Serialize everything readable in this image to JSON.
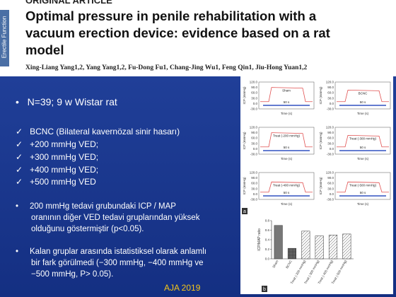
{
  "header": {
    "section": "ORIGINAL ARTICLE",
    "side_label": "Erectile Function",
    "title": "Optimal pressure in penile rehabilitation with a vacuum erection device: evidence based on a rat model",
    "authors": "Xing-Liang Yang1,2, Yang Yang1,2, Fu-Dong Fu1, Chang-Jing Wu1, Feng Qin1, Jiu-Hong Yuan1,2"
  },
  "bullets": [
    "N=39;  9 w Wistar rat"
  ],
  "checks": [
    "BCNC (Bilateral kavernözal sinir hasarı)",
    "+200 mmHg VED;",
    "+300 mmHg VED;",
    "+400 mmHg VED;",
    "+500 mmHg VED"
  ],
  "notes": [
    "200 mmHg tedavi grubundaki ICP / MAP oranının diğer VED tedavi gruplarından yüksek olduğunu göstermiştir (p<0.05).",
    "Kalan gruplar arasında istatistiksel olarak anlamlı bir fark görülmedi (−300 mmHg, −400 mmHg ve −500 mmHg, P> 0.05)."
  ],
  "footer": "AJA 2019",
  "figure": {
    "panel_a": {
      "label": "a",
      "x_label": "Time (s)",
      "y_label": "ICP (mmHg)",
      "scale_bar": "50 s",
      "yticks": [
        "120.0",
        "90.0",
        "60.0",
        "30.0",
        "0.0",
        "-30.0"
      ],
      "panels": [
        "Sham",
        "BCNC",
        "Treat (-200 mmHg)",
        "Treat (-300 mmHg)",
        "Treat (-400 mmHg)",
        "Treat (-500 mmHg)"
      ]
    },
    "panel_b": {
      "type": "bar",
      "label": "b",
      "y_label": "ICP/MAP ratio",
      "categories": [
        "Sham",
        "BCNC",
        "Treat (-200 mmHg)",
        "Treat (-300 mmHg)",
        "Treat (-400 mmHg)",
        "Treat (-500 mmHg)"
      ],
      "values": [
        0.7,
        0.22,
        0.58,
        0.48,
        0.5,
        0.52
      ],
      "ylim": [
        0,
        0.8
      ],
      "yticks": [
        {
          "value": 0,
          "label": "0.0"
        },
        {
          "value": 0.2,
          "label": "0.2"
        },
        {
          "value": 0.4,
          "label": "0.4"
        },
        {
          "value": 0.6,
          "label": "0.6"
        },
        {
          "value": 0.8,
          "label": "0.8"
        }
      ]
    }
  }
}
